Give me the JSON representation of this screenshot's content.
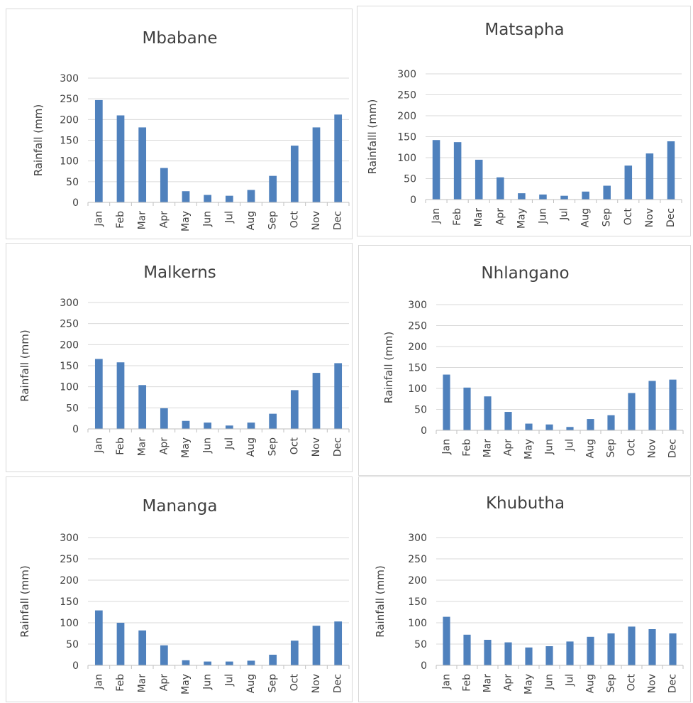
{
  "chart_data": [
    {
      "type": "bar",
      "title": "Mbabane",
      "ylabel": "Rainfall (mm)",
      "xlabel": "",
      "ylim": [
        0,
        300
      ],
      "yticks": [
        0,
        50,
        100,
        150,
        200,
        250,
        300
      ],
      "categories": [
        "Jan",
        "Feb",
        "Mar",
        "Apr",
        "May",
        "Jun",
        "Jul",
        "Aug",
        "Sep",
        "Oct",
        "Nov",
        "Dec"
      ],
      "values": [
        247,
        210,
        181,
        83,
        27,
        18,
        16,
        30,
        64,
        137,
        181,
        212
      ],
      "grid": true,
      "color": "#4f81bd"
    },
    {
      "type": "bar",
      "title": "Matsapha",
      "ylabel": "Rainfalll (mm)",
      "xlabel": "",
      "ylim": [
        0,
        300
      ],
      "yticks": [
        0,
        50,
        100,
        150,
        200,
        250,
        300
      ],
      "categories": [
        "Jan",
        "Feb",
        "Mar",
        "Apr",
        "May",
        "Jun",
        "Jul",
        "Aug",
        "Sep",
        "Oct",
        "Nov",
        "Dec"
      ],
      "values": [
        142,
        137,
        95,
        53,
        15,
        12,
        9,
        19,
        33,
        81,
        110,
        139
      ],
      "grid": true,
      "color": "#4f81bd"
    },
    {
      "type": "bar",
      "title": "Malkerns",
      "ylabel": "Rainfall (mm)",
      "xlabel": "",
      "ylim": [
        0,
        300
      ],
      "yticks": [
        0,
        50,
        100,
        150,
        200,
        250,
        300
      ],
      "categories": [
        "Jan",
        "Feb",
        "Mar",
        "Apr",
        "May",
        "Jun",
        "Jul",
        "Aug",
        "Sep",
        "Oct",
        "Nov",
        "Dec"
      ],
      "values": [
        166,
        158,
        104,
        49,
        19,
        15,
        8,
        15,
        36,
        92,
        133,
        156
      ],
      "grid": true,
      "color": "#4f81bd"
    },
    {
      "type": "bar",
      "title": "Nhlangano",
      "ylabel": "Rainfall (mm)",
      "xlabel": "",
      "ylim": [
        0,
        300
      ],
      "yticks": [
        0,
        50,
        100,
        150,
        200,
        250,
        300
      ],
      "categories": [
        "Jan",
        "Feb",
        "Mar",
        "Apr",
        "May",
        "Jun",
        "Jul",
        "Aug",
        "Sep",
        "Oct",
        "Nov",
        "Dec"
      ],
      "values": [
        133,
        102,
        81,
        44,
        16,
        14,
        8,
        27,
        36,
        89,
        118,
        121
      ],
      "grid": true,
      "color": "#4f81bd"
    },
    {
      "type": "bar",
      "title": "Mananga",
      "ylabel": "Rainfall (mm)",
      "xlabel": "",
      "ylim": [
        0,
        300
      ],
      "yticks": [
        0,
        50,
        100,
        150,
        200,
        250,
        300
      ],
      "categories": [
        "Jan",
        "Feb",
        "Mar",
        "Apr",
        "May",
        "Jun",
        "Jul",
        "Aug",
        "Sep",
        "Oct",
        "Nov",
        "Dec"
      ],
      "values": [
        129,
        100,
        82,
        47,
        12,
        9,
        9,
        11,
        25,
        58,
        93,
        103
      ],
      "grid": true,
      "color": "#4f81bd"
    },
    {
      "type": "bar",
      "title": "Khubutha",
      "ylabel": "Rainfall (mm)",
      "xlabel": "",
      "ylim": [
        0,
        300
      ],
      "yticks": [
        0,
        50,
        100,
        150,
        200,
        250,
        300
      ],
      "categories": [
        "Jan",
        "Feb",
        "Mar",
        "Apr",
        "May",
        "Jun",
        "Jul",
        "Aug",
        "Sep",
        "Oct",
        "Nov",
        "Dec"
      ],
      "values": [
        114,
        72,
        60,
        54,
        42,
        45,
        56,
        67,
        75,
        91,
        85,
        75
      ],
      "grid": true,
      "color": "#4f81bd"
    }
  ]
}
